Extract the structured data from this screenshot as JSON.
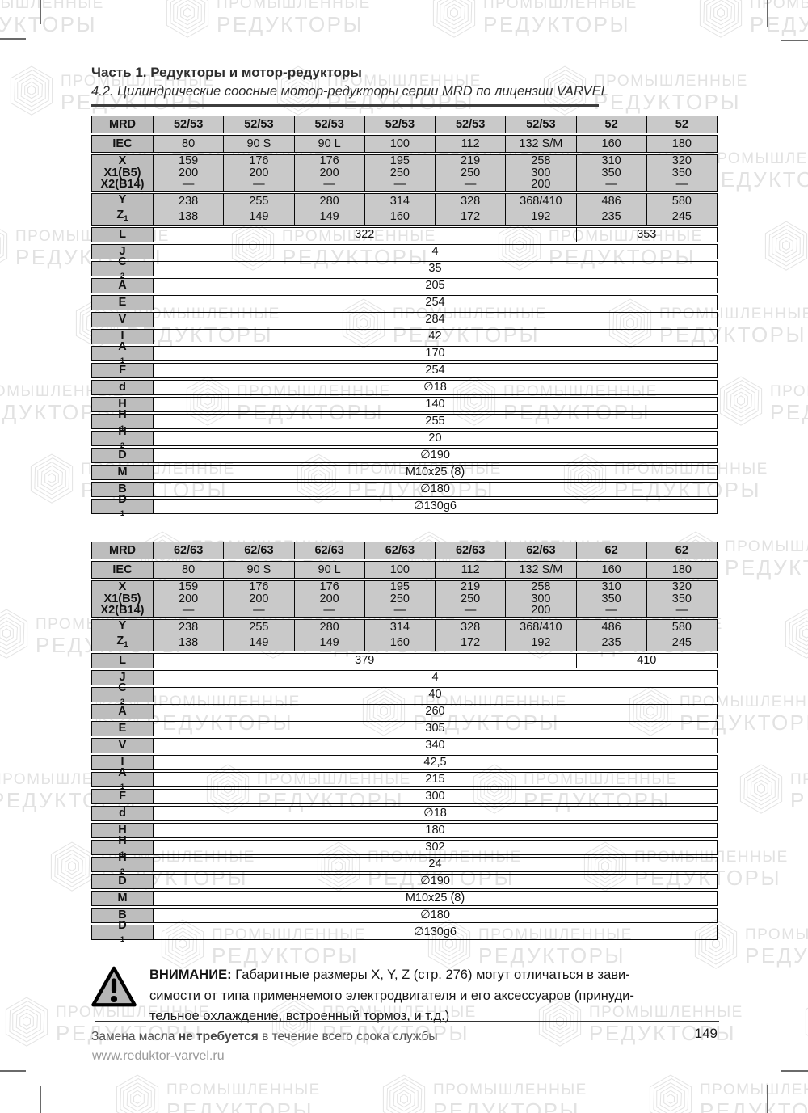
{
  "watermark": {
    "line1": "ПРОМЫШЛЕННЫЕ",
    "line2": "РЕДУКТОРЫ"
  },
  "header": {
    "title": "Часть 1. Редукторы и мотор-редукторы",
    "subtitle": "4.2. Цилиндрические соосные мотор-редукторы серии MRD по лицензии VARVEL"
  },
  "tables": [
    {
      "header_row": {
        "label": "MRD",
        "values": [
          "52/53",
          "52/53",
          "52/53",
          "52/53",
          "52/53",
          "52/53",
          "52",
          "52"
        ]
      },
      "iec_row": {
        "label": "IEC",
        "values": [
          "80",
          "90 S",
          "90 L",
          "100",
          "112",
          "132 S/M",
          "160",
          "180"
        ]
      },
      "x_row": {
        "labels": [
          "X",
          "X1(B5)",
          "X2(B14)"
        ],
        "columns": [
          [
            "159",
            "200",
            "—"
          ],
          [
            "176",
            "200",
            "—"
          ],
          [
            "176",
            "200",
            "—"
          ],
          [
            "195",
            "250",
            "—"
          ],
          [
            "219",
            "250",
            "—"
          ],
          [
            "258",
            "300",
            "200"
          ],
          [
            "310",
            "350",
            "—"
          ],
          [
            "320",
            "350",
            "—"
          ]
        ]
      },
      "yz_row": {
        "labels": [
          {
            "text": "Y",
            "sub": ""
          },
          {
            "text": "Z",
            "sub": "1"
          }
        ],
        "columns": [
          [
            "238",
            "138"
          ],
          [
            "255",
            "149"
          ],
          [
            "280",
            "149"
          ],
          [
            "314",
            "160"
          ],
          [
            "328",
            "172"
          ],
          [
            "368/410",
            "192"
          ],
          [
            "486",
            "235"
          ],
          [
            "580",
            "245"
          ]
        ]
      },
      "l_row": {
        "label": "L",
        "value_left": "322",
        "value_right": "353"
      },
      "dim_rows": [
        {
          "label": "J",
          "sub": "",
          "value": "4"
        },
        {
          "label": "C",
          "sub": "2",
          "value": "35"
        },
        {
          "label": "A",
          "sub": "",
          "value": "205"
        },
        {
          "label": "E",
          "sub": "",
          "value": "254"
        },
        {
          "label": "V",
          "sub": "",
          "value": "284"
        },
        {
          "label": "I",
          "sub": "",
          "value": "42"
        },
        {
          "label": "A",
          "sub": "1",
          "value": "170"
        },
        {
          "label": "F",
          "sub": "",
          "value": "254"
        },
        {
          "label": "d",
          "sub": "",
          "value": "∅18"
        },
        {
          "label": "H",
          "sub": "",
          "value": "140"
        },
        {
          "label": "H",
          "sub": "1",
          "value": "255"
        },
        {
          "label": "H",
          "sub": "2",
          "value": "20"
        },
        {
          "label": "D",
          "sub": "",
          "value": "∅190"
        },
        {
          "label": "M",
          "sub": "",
          "value": "M10x25 (8)"
        },
        {
          "label": "B",
          "sub": "",
          "value": "∅180"
        },
        {
          "label": "D",
          "sub": "1",
          "value": "∅130g6"
        }
      ]
    },
    {
      "header_row": {
        "label": "MRD",
        "values": [
          "62/63",
          "62/63",
          "62/63",
          "62/63",
          "62/63",
          "62/63",
          "62",
          "62"
        ]
      },
      "iec_row": {
        "label": "IEC",
        "values": [
          "80",
          "90 S",
          "90 L",
          "100",
          "112",
          "132 S/M",
          "160",
          "180"
        ]
      },
      "x_row": {
        "labels": [
          "X",
          "X1(B5)",
          "X2(B14)"
        ],
        "columns": [
          [
            "159",
            "200",
            "—"
          ],
          [
            "176",
            "200",
            "—"
          ],
          [
            "176",
            "200",
            "—"
          ],
          [
            "195",
            "250",
            "—"
          ],
          [
            "219",
            "250",
            "—"
          ],
          [
            "258",
            "300",
            "200"
          ],
          [
            "310",
            "350",
            "—"
          ],
          [
            "320",
            "350",
            "—"
          ]
        ]
      },
      "yz_row": {
        "labels": [
          {
            "text": "Y",
            "sub": ""
          },
          {
            "text": "Z",
            "sub": "1"
          }
        ],
        "columns": [
          [
            "238",
            "138"
          ],
          [
            "255",
            "149"
          ],
          [
            "280",
            "149"
          ],
          [
            "314",
            "160"
          ],
          [
            "328",
            "172"
          ],
          [
            "368/410",
            "192"
          ],
          [
            "486",
            "235"
          ],
          [
            "580",
            "245"
          ]
        ]
      },
      "l_row": {
        "label": "L",
        "value_left": "379",
        "value_right": "410"
      },
      "dim_rows": [
        {
          "label": "J",
          "sub": "",
          "value": "4"
        },
        {
          "label": "C",
          "sub": "2",
          "value": "40"
        },
        {
          "label": "A",
          "sub": "",
          "value": "260"
        },
        {
          "label": "E",
          "sub": "",
          "value": "305"
        },
        {
          "label": "V",
          "sub": "",
          "value": "340"
        },
        {
          "label": "I",
          "sub": "",
          "value": "42,5"
        },
        {
          "label": "A",
          "sub": "1",
          "value": "215"
        },
        {
          "label": "F",
          "sub": "",
          "value": "300"
        },
        {
          "label": "d",
          "sub": "",
          "value": "∅18"
        },
        {
          "label": "H",
          "sub": "",
          "value": "180"
        },
        {
          "label": "H",
          "sub": "1",
          "value": "302"
        },
        {
          "label": "H",
          "sub": "2",
          "value": "24"
        },
        {
          "label": "D",
          "sub": "",
          "value": "∅190"
        },
        {
          "label": "M",
          "sub": "",
          "value": "M10x25 (8)"
        },
        {
          "label": "B",
          "sub": "",
          "value": "∅180"
        },
        {
          "label": "D",
          "sub": "1",
          "value": "∅130g6"
        }
      ]
    }
  ],
  "warning": {
    "label": "ВНИМАНИЕ:",
    "lines": [
      "Габаритные размеры X, Y, Z (стр. 276) могут отличаться в зави-",
      "симости от типа применяемого электродвигателя и его аксессуаров (принуди-",
      "тельное охлаждение, встроенный тормоз, и т.д.)"
    ]
  },
  "footer": {
    "oil_prefix": "Замена масла ",
    "oil_bold": "не требуется",
    "oil_suffix": " в течение всего срока службы",
    "website": "www.reduktor-varvel.ru",
    "page_number": "149"
  },
  "colors": {
    "cell_gray": "#c9c9c9",
    "label_gray": "#bdbdbd",
    "watermark_gray": "#e2e2e2",
    "warning_triangle_fill": "#b5b5b5"
  }
}
